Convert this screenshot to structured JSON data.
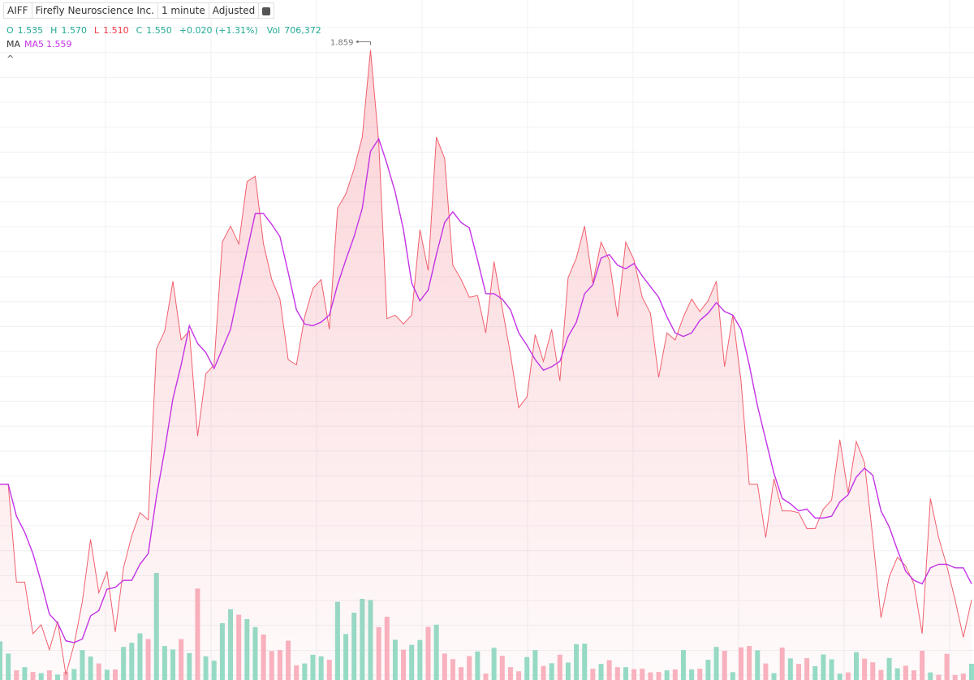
{
  "header": {
    "ticker": "AIFF",
    "company": "Firefly Neuroscience Inc.",
    "interval": "1 minute",
    "adjustment": "Adjusted",
    "ohlc": [
      {
        "label": "O",
        "value": "1.535",
        "color": "#22ab94"
      },
      {
        "label": "H",
        "value": "1.570",
        "color": "#22ab94"
      },
      {
        "label": "L",
        "value": "1.510",
        "color": "#f23645"
      },
      {
        "label": "C",
        "value": "1.550",
        "color": "#22ab94"
      }
    ],
    "change": "+0.020 (+1.31%)",
    "volume_label": "Vol",
    "volume_value": "706,372",
    "indicator": "MA"
  },
  "chart_data": {
    "type": "line",
    "ylim": [
      1.505,
      1.887
    ],
    "grid": true,
    "series": [
      {
        "name": "AIFF",
        "color": "#f0606e",
        "values": [
          1.615,
          1.615,
          1.56,
          1.56,
          1.531,
          1.536,
          1.522,
          1.538,
          1.508,
          1.525,
          1.549,
          1.584,
          1.554,
          1.566,
          1.532,
          1.568,
          1.586,
          1.599,
          1.595,
          1.691,
          1.701,
          1.729,
          1.696,
          1.701,
          1.642,
          1.677,
          1.682,
          1.751,
          1.76,
          1.75,
          1.785,
          1.788,
          1.75,
          1.73,
          1.719,
          1.685,
          1.682,
          1.709,
          1.725,
          1.73,
          1.702,
          1.77,
          1.778,
          1.792,
          1.81,
          1.859,
          1.807,
          1.708,
          1.71,
          1.705,
          1.71,
          1.758,
          1.735,
          1.81,
          1.798,
          1.738,
          1.73,
          1.72,
          1.721,
          1.7,
          1.74,
          1.714,
          1.688,
          1.658,
          1.664,
          1.699,
          1.684,
          1.702,
          1.673,
          1.731,
          1.742,
          1.76,
          1.728,
          1.751,
          1.741,
          1.709,
          1.751,
          1.741,
          1.72,
          1.711,
          1.675,
          1.7,
          1.696,
          1.709,
          1.719,
          1.712,
          1.718,
          1.729,
          1.681,
          1.71,
          1.673,
          1.615,
          1.615,
          1.585,
          1.618,
          1.6,
          1.6,
          1.599,
          1.59,
          1.59,
          1.601,
          1.606,
          1.64,
          1.61,
          1.639,
          1.627,
          1.585,
          1.54,
          1.563,
          1.574,
          1.569,
          1.559,
          1.531,
          1.607,
          1.585,
          1.569,
          1.55,
          1.529,
          1.55
        ]
      },
      {
        "name": "MA5",
        "color": "#c433e6",
        "values": [
          1.615,
          1.615,
          1.597,
          1.588,
          1.576,
          1.56,
          1.542,
          1.537,
          1.527,
          1.526,
          1.528,
          1.541,
          1.544,
          1.556,
          1.557,
          1.561,
          1.561,
          1.57,
          1.576,
          1.608,
          1.634,
          1.663,
          1.682,
          1.704,
          1.694,
          1.689,
          1.68,
          1.691,
          1.702,
          1.724,
          1.746,
          1.767,
          1.767,
          1.761,
          1.754,
          1.734,
          1.713,
          1.705,
          1.704,
          1.706,
          1.71,
          1.727,
          1.741,
          1.754,
          1.77,
          1.802,
          1.809,
          1.795,
          1.779,
          1.758,
          1.728,
          1.718,
          1.724,
          1.744,
          1.762,
          1.768,
          1.762,
          1.759,
          1.741,
          1.722,
          1.722,
          1.719,
          1.713,
          1.7,
          1.693,
          1.685,
          1.679,
          1.681,
          1.684,
          1.698,
          1.706,
          1.722,
          1.727,
          1.742,
          1.744,
          1.738,
          1.736,
          1.739,
          1.732,
          1.726,
          1.72,
          1.709,
          1.7,
          1.698,
          1.7,
          1.707,
          1.711,
          1.717,
          1.712,
          1.71,
          1.702,
          1.682,
          1.659,
          1.64,
          1.621,
          1.607,
          1.604,
          1.6,
          1.601,
          1.596,
          1.596,
          1.597,
          1.605,
          1.609,
          1.619,
          1.624,
          1.62,
          1.6,
          1.591,
          1.578,
          1.566,
          1.561,
          1.559,
          1.568,
          1.57,
          1.57,
          1.568,
          1.568,
          1.559
        ]
      }
    ],
    "volume": {
      "up_color": "#92dec8",
      "down_color": "#f8b4c0",
      "values": [
        1680000,
        1150000,
        420000,
        560000,
        350000,
        300000,
        420000,
        240000,
        360000,
        480000,
        1300000,
        1020000,
        720000,
        450000,
        460000,
        1440000,
        1620000,
        2030000,
        1780000,
        4660000,
        1480000,
        1330000,
        1780000,
        1170000,
        3980000,
        1030000,
        840000,
        2470000,
        3080000,
        2840000,
        2650000,
        2300000,
        1980000,
        1260000,
        1300000,
        1710000,
        640000,
        720000,
        1100000,
        1030000,
        880000,
        3400000,
        2000000,
        2930000,
        3530000,
        3480000,
        2300000,
        2750000,
        1750000,
        1320000,
        1530000,
        1740000,
        2310000,
        2410000,
        1150000,
        910000,
        560000,
        1040000,
        1240000,
        280000,
        1400000,
        1050000,
        560000,
        380000,
        1000000,
        1300000,
        610000,
        730000,
        1100000,
        760000,
        1560000,
        1580000,
        490000,
        700000,
        860000,
        560000,
        560000,
        470000,
        490000,
        330000,
        350000,
        420000,
        460000,
        1300000,
        460000,
        490000,
        880000,
        1440000,
        1270000,
        340000,
        1420000,
        1480000,
        1290000,
        720000,
        300000,
        1410000,
        940000,
        700000,
        950000,
        600000,
        1110000,
        900000,
        280000,
        330000,
        1210000,
        930000,
        770000,
        440000,
        960000,
        510000,
        620000,
        420000,
        1270000,
        330000,
        230000,
        1140000,
        220000,
        280000,
        706372
      ]
    }
  }
}
